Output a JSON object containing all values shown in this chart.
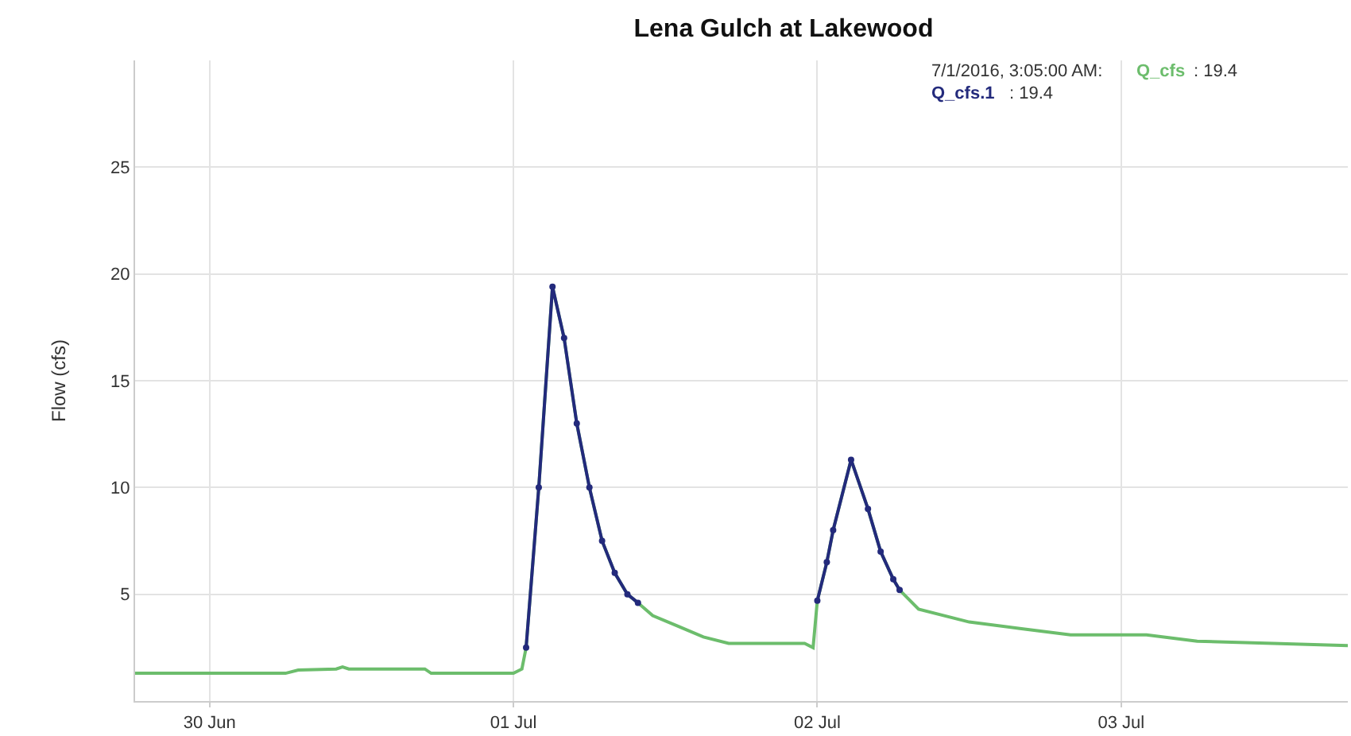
{
  "chart_data": {
    "type": "line",
    "title": "Lena Gulch at Lakewood",
    "ylabel": "Flow (cfs)",
    "xlim": [
      "2016-06-29T18:07",
      "2016-07-03T17:54"
    ],
    "xticks": [
      {
        "value": "2016-06-30",
        "label": "30 Jun"
      },
      {
        "value": "2016-07-01",
        "label": "01 Jul"
      },
      {
        "value": "2016-07-02",
        "label": "02 Jul"
      },
      {
        "value": "2016-07-03",
        "label": "03 Jul"
      }
    ],
    "ylim": [
      0,
      30
    ],
    "yticks": [
      5,
      10,
      15,
      20,
      25
    ],
    "grid": true,
    "legend": "top right",
    "annotations": [
      "7/1/2016, 3:05:00 AM:",
      ": 19.4",
      ": 19.4"
    ],
    "series": [
      {
        "name": "Q_cfs",
        "color": "#6cbd6c",
        "marker": "none",
        "x": [
          "2016-06-29T18:07",
          "2016-06-30T06:00",
          "2016-06-30T07:00",
          "2016-06-30T10:00",
          "2016-06-30T10:30",
          "2016-06-30T11:00",
          "2016-06-30T17:00",
          "2016-06-30T17:30",
          "2016-07-01T00:00",
          "2016-07-01T00:40",
          "2016-07-01T01:00",
          "2016-07-01T02:00",
          "2016-07-01T03:05",
          "2016-07-01T04:00",
          "2016-07-01T05:00",
          "2016-07-01T06:00",
          "2016-07-01T07:00",
          "2016-07-01T08:00",
          "2016-07-01T09:00",
          "2016-07-01T09:50",
          "2016-07-01T11:00",
          "2016-07-01T13:00",
          "2016-07-01T15:00",
          "2016-07-01T17:00",
          "2016-07-01T20:00",
          "2016-07-01T23:00",
          "2016-07-01T23:40",
          "2016-07-02T00:00",
          "2016-07-02T00:45",
          "2016-07-02T01:15",
          "2016-07-02T02:40",
          "2016-07-02T04:00",
          "2016-07-02T05:00",
          "2016-07-02T06:00",
          "2016-07-02T06:30",
          "2016-07-02T08:00",
          "2016-07-02T12:00",
          "2016-07-02T16:00",
          "2016-07-02T20:00",
          "2016-07-03T02:00",
          "2016-07-03T06:00",
          "2016-07-03T12:00",
          "2016-07-03T17:54"
        ],
        "values": [
          1.3,
          1.3,
          1.45,
          1.5,
          1.6,
          1.5,
          1.5,
          1.3,
          1.3,
          1.5,
          2.5,
          10,
          19.4,
          17,
          13,
          10,
          7.5,
          6,
          5,
          4.6,
          4.0,
          3.5,
          3.0,
          2.7,
          2.7,
          2.7,
          2.5,
          4.7,
          6.5,
          8,
          11.3,
          9,
          7,
          5.7,
          5.2,
          4.3,
          3.7,
          3.4,
          3.1,
          3.1,
          2.8,
          2.7,
          2.6
        ]
      },
      {
        "name": "Q_cfs.1",
        "color": "#232a7c",
        "marker": "circle",
        "x": [
          "2016-07-01T01:00",
          "2016-07-01T02:00",
          "2016-07-01T03:05",
          "2016-07-01T04:00",
          "2016-07-01T05:00",
          "2016-07-01T06:00",
          "2016-07-01T07:00",
          "2016-07-01T08:00",
          "2016-07-01T09:00",
          "2016-07-01T09:50",
          "2016-07-01T20:00",
          "2016-07-02T00:00",
          "2016-07-02T00:45",
          "2016-07-02T01:15",
          "2016-07-02T02:40",
          "2016-07-02T04:00",
          "2016-07-02T05:00",
          "2016-07-02T06:00",
          "2016-07-02T06:30"
        ],
        "values": [
          2.5,
          10,
          19.4,
          17,
          13,
          10,
          7.5,
          6,
          5,
          4.6,
          null,
          4.7,
          6.5,
          8,
          11.3,
          9,
          7,
          5.7,
          5.2
        ]
      }
    ]
  }
}
